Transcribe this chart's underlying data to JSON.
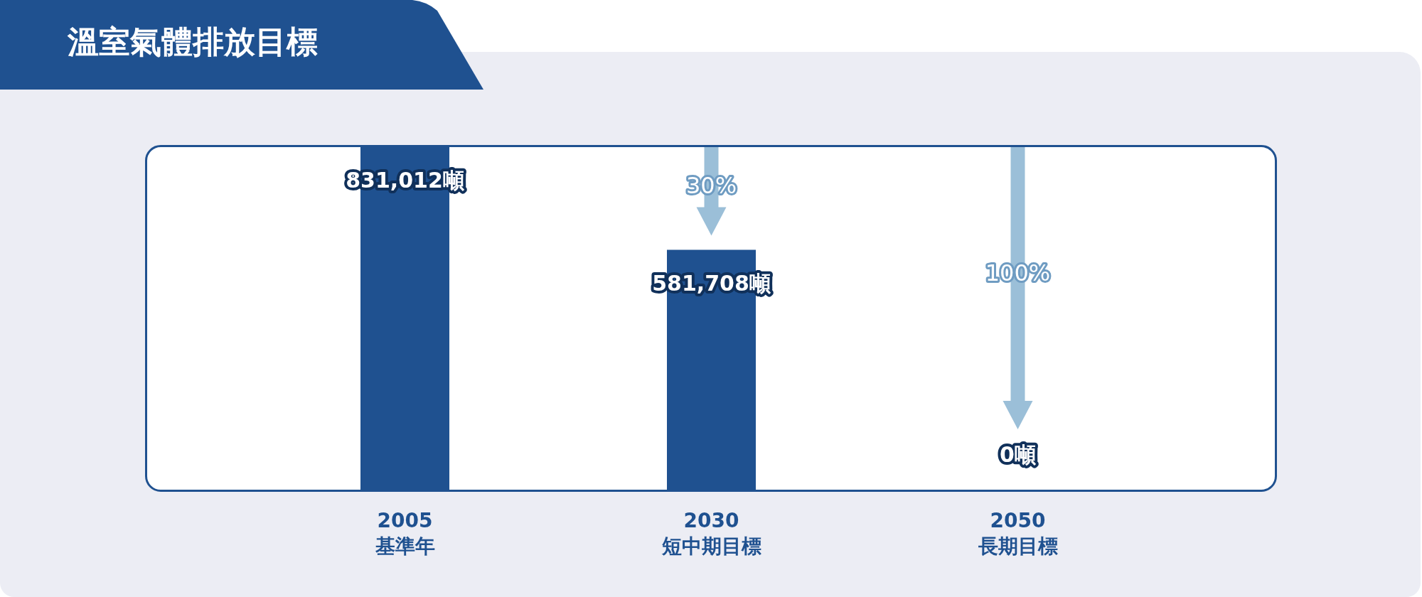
{
  "chart_data": {
    "type": "bar",
    "title": "溫室氣體排放目標",
    "categories": [
      "2005\n基準年",
      "2030\n短中期目標",
      "2050\n長期目標"
    ],
    "values": [
      831012,
      581708,
      0
    ],
    "value_labels": [
      "831,012噸",
      "581,708噸",
      "0噸"
    ],
    "color": "#1f5190",
    "annotations": [
      "30%",
      "100%"
    ]
  }
}
